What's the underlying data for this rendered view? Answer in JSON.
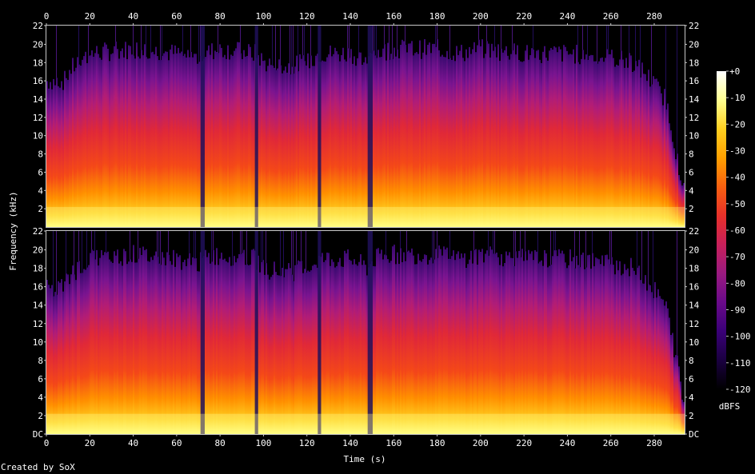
{
  "chart_data": {
    "type": "heatmap",
    "xlabel": "Time (s)",
    "ylabel": "Frequency (kHz)",
    "x_ticks": [
      "0",
      "20",
      "40",
      "60",
      "80",
      "100",
      "120",
      "140",
      "160",
      "180",
      "200",
      "220",
      "240",
      "260",
      "280"
    ],
    "x_range": [
      0,
      294
    ],
    "channels": [
      {
        "y_ticks": [
          "2",
          "4",
          "6",
          "8",
          "10",
          "12",
          "14",
          "16",
          "18",
          "20",
          "22"
        ],
        "y_range": [
          0,
          22.05
        ]
      },
      {
        "y_ticks": [
          "DC",
          "2",
          "4",
          "6",
          "8",
          "10",
          "12",
          "14",
          "16",
          "18",
          "20",
          "22"
        ],
        "y_range": [
          0,
          22.05
        ]
      }
    ],
    "colorbar": {
      "label": "dBFS",
      "ticks": [
        "+0",
        "-10",
        "-20",
        "-30",
        "-40",
        "-50",
        "-60",
        "-70",
        "-80",
        "-90",
        "-100",
        "-110",
        "-120"
      ],
      "range": [
        -120,
        0
      ],
      "colors": [
        "#000000",
        "#1a0040",
        "#3a0078",
        "#6a0a8a",
        "#9a1a80",
        "#c8205a",
        "#e8302a",
        "#f86010",
        "#ffa000",
        "#ffd020",
        "#ffff90",
        "#ffffff"
      ]
    },
    "energy_profile": {
      "time_s": [
        0,
        8,
        10,
        14,
        20,
        40,
        60,
        70,
        72,
        80,
        96,
        100,
        110,
        120,
        125,
        130,
        140,
        148,
        150,
        160,
        180,
        190,
        200,
        220,
        240,
        260,
        270,
        275,
        285,
        290,
        294
      ],
      "cutoff_khz": [
        16,
        16,
        17,
        18,
        19,
        19.5,
        19,
        18.5,
        19,
        19.5,
        19,
        18,
        17.5,
        18,
        19,
        19,
        19,
        18,
        19,
        19.5,
        19.5,
        19,
        19.5,
        19,
        19,
        18.5,
        18,
        17,
        14,
        8,
        3
      ]
    }
  },
  "footer": {
    "credit": "Created by SoX"
  }
}
